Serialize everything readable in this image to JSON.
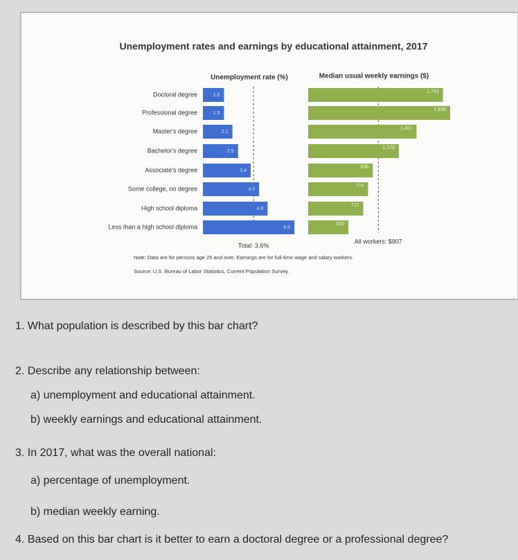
{
  "title": "Unemployment rates and earnings by educational attainment, 2017",
  "chart_data": [
    {
      "type": "bar",
      "orientation": "horizontal",
      "title": "Unemployment rate (%)",
      "categories": [
        "Doctoral degree",
        "Professional degree",
        "Master's degree",
        "Bachelor's degree",
        "Associate's degree",
        "Some college, no degree",
        "High school diploma",
        "Less than a high school diploma"
      ],
      "values": [
        1.5,
        1.5,
        2.1,
        2.5,
        3.4,
        4.0,
        4.6,
        6.5
      ],
      "value_labels": [
        "1.5",
        "1.5",
        "2.1",
        "2.5",
        "3.4",
        "4.0",
        "4.6",
        "6.5"
      ],
      "color": "#3f6fd0",
      "reference": {
        "label": "Total: 3.6%",
        "value": 3.6
      }
    },
    {
      "type": "bar",
      "orientation": "horizontal",
      "title": "Median usual weekly earnings ($)",
      "values": [
        1743,
        1836,
        1401,
        1173,
        836,
        774,
        712,
        520
      ],
      "value_labels": [
        "1,743",
        "1,836",
        "1,401",
        "1,173",
        "836",
        "774",
        "712",
        "520"
      ],
      "color": "#8fb04c",
      "reference": {
        "label": "All workers: $907",
        "value": 907
      }
    }
  ],
  "note": "Note: Data are for persons age 25 and over. Earnings are for full-time wage and salary workers.",
  "source": "Source: U.S. Bureau of Labor Statistics, Current Population Survey.",
  "questions": [
    "1. What population is described by this bar chart?",
    "2. Describe any relationship between:",
    "a) unemployment and educational attainment.",
    "b) weekly earnings and educational attainment.",
    "3. In 2017, what was the overall national:",
    "a) percentage of unemployment.",
    "b) median weekly earning.",
    "4. Based on this bar chart is it better to earn a doctoral degree or a professional degree?"
  ]
}
